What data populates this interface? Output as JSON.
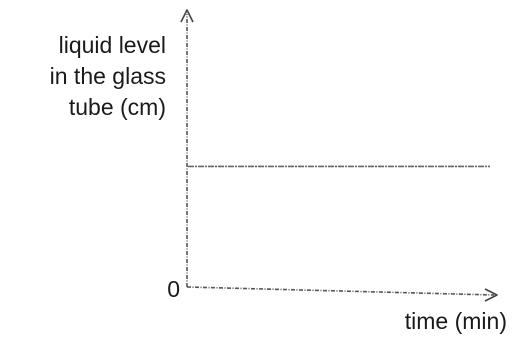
{
  "chart_data": {
    "type": "line",
    "title": "",
    "ylabel_lines": [
      "liquid level",
      "in the glass",
      "tube (cm)"
    ],
    "xlabel": "time (min)",
    "origin_label": "0",
    "x_ticks": [],
    "y_ticks": [],
    "grid": false,
    "series": [
      {
        "x": [
          0,
          1
        ],
        "y": [
          0.45,
          0.45
        ],
        "color": "#666666"
      }
    ],
    "xlim": [
      0,
      1
    ],
    "ylim": [
      0,
      1
    ],
    "legend": "none"
  }
}
